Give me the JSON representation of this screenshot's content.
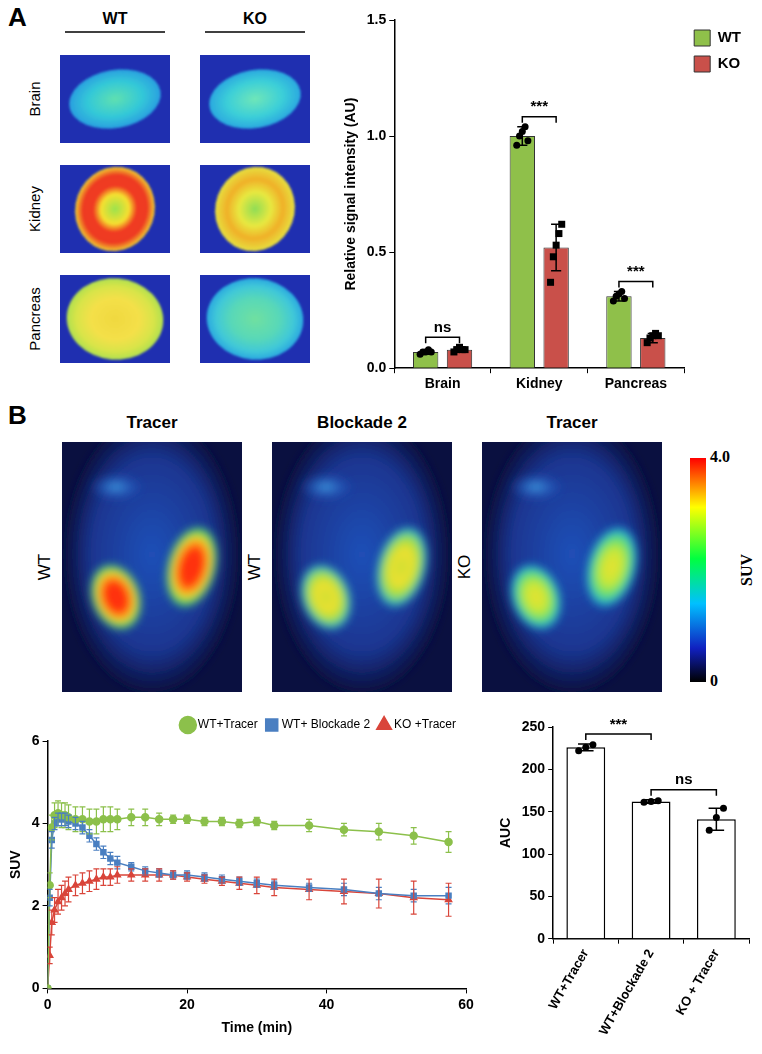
{
  "panel_labels": [
    "A",
    "B"
  ],
  "images_A": {
    "columns": [
      "WT",
      "KO"
    ],
    "rows": [
      "Brain",
      "Kidney",
      "Pancreas"
    ]
  },
  "images_B": {
    "titles": [
      "Tracer",
      "Blockade 2",
      "Tracer"
    ],
    "row_labels": [
      "WT",
      "WT",
      "KO"
    ],
    "colorbar": {
      "label": "SUV",
      "range": [
        0,
        4
      ],
      "ticks": [
        {
          "value": 4,
          "label": "4.0"
        },
        0
      ]
    }
  },
  "chart_data": [
    {
      "type": "bar",
      "categories": [
        "Brain",
        "Kidney",
        "Pancreas"
      ],
      "series": [
        {
          "name": "WT",
          "color": "#8fc04a",
          "marker": "circle",
          "values": [
            0.07,
            1.0,
            0.31
          ],
          "errors": [
            0.01,
            0.04,
            0.02
          ],
          "points": [
            [
              0.06,
              0.07,
              0.07,
              0.08,
              0.07
            ],
            [
              0.96,
              1.0,
              1.02,
              1.04,
              0.98
            ],
            [
              0.29,
              0.31,
              0.32,
              0.33,
              0.3
            ]
          ]
        },
        {
          "name": "KO",
          "color": "#c9504a",
          "marker": "square",
          "values": [
            0.08,
            0.52,
            0.13
          ],
          "errors": [
            0.01,
            0.1,
            0.02
          ],
          "points": [
            [
              0.07,
              0.08,
              0.09,
              0.08,
              0.08
            ],
            [
              0.37,
              0.48,
              0.53,
              0.58,
              0.62
            ],
            [
              0.11,
              0.13,
              0.14,
              0.15,
              0.14
            ]
          ]
        }
      ],
      "significance": [
        "ns",
        "***",
        "***"
      ],
      "y_label": "Relative signal intensity (AU)",
      "ylim": [
        0,
        1.5
      ],
      "yticks": [
        {
          "value": 0,
          "label": "0.0"
        },
        {
          "value": 0.5,
          "label": "0.5"
        },
        {
          "value": 1,
          "label": "1.0"
        },
        {
          "value": 1.5,
          "label": "1.5"
        }
      ],
      "grid": false,
      "legend": "right"
    },
    {
      "type": "line",
      "x": [
        0,
        0.3,
        0.6,
        1,
        1.5,
        2,
        2.5,
        3,
        4,
        5,
        6,
        7,
        8,
        9,
        10,
        12,
        14,
        16,
        18,
        20,
        22.5,
        25,
        27.5,
        30,
        32.5,
        37.5,
        42.5,
        47.5,
        52.5,
        57.5
      ],
      "series": [
        {
          "name": "WT+Tracer",
          "color": "#8cc04b",
          "marker": "circle",
          "values": [
            0,
            2.5,
            3.9,
            4.2,
            4.25,
            4.2,
            4.2,
            4.15,
            4.1,
            4.1,
            4.05,
            4.05,
            4.1,
            4.1,
            4.1,
            4.15,
            4.15,
            4.1,
            4.1,
            4.1,
            4.05,
            4.05,
            4.0,
            4.05,
            3.95,
            3.95,
            3.85,
            3.8,
            3.7,
            3.55
          ],
          "errors": [
            0,
            0.3,
            0.3,
            0.3,
            0.3,
            0.3,
            0.3,
            0.3,
            0.3,
            0.3,
            0.3,
            0.3,
            0.3,
            0.3,
            0.25,
            0.2,
            0.2,
            0.15,
            0.1,
            0.1,
            0.1,
            0.1,
            0.1,
            0.1,
            0.1,
            0.15,
            0.15,
            0.2,
            0.2,
            0.25
          ]
        },
        {
          "name": "WT+ Blockade 2",
          "color": "#4a7fc1",
          "marker": "square",
          "values": [
            0,
            2.2,
            3.6,
            4.0,
            4.1,
            4.1,
            4.1,
            4.05,
            4.0,
            3.9,
            3.7,
            3.5,
            3.3,
            3.15,
            3.05,
            2.95,
            2.85,
            2.8,
            2.75,
            2.75,
            2.7,
            2.65,
            2.6,
            2.55,
            2.5,
            2.45,
            2.4,
            2.3,
            2.25,
            2.25
          ],
          "errors": [
            0,
            0.2,
            0.2,
            0.15,
            0.15,
            0.15,
            0.15,
            0.15,
            0.15,
            0.15,
            0.15,
            0.15,
            0.15,
            0.15,
            0.15,
            0.1,
            0.1,
            0.1,
            0.1,
            0.1,
            0.1,
            0.1,
            0.1,
            0.1,
            0.1,
            0.1,
            0.15,
            0.15,
            0.15,
            0.2
          ]
        },
        {
          "name": "KO +Tracer",
          "color": "#d9453a",
          "marker": "triangle",
          "values": [
            0,
            0.8,
            1.6,
            1.9,
            2.1,
            2.2,
            2.3,
            2.4,
            2.5,
            2.55,
            2.6,
            2.65,
            2.7,
            2.7,
            2.75,
            2.75,
            2.75,
            2.75,
            2.75,
            2.7,
            2.65,
            2.6,
            2.55,
            2.5,
            2.45,
            2.4,
            2.35,
            2.3,
            2.2,
            2.15
          ],
          "errors": [
            0,
            0.2,
            0.3,
            0.3,
            0.3,
            0.3,
            0.3,
            0.3,
            0.25,
            0.25,
            0.25,
            0.25,
            0.2,
            0.2,
            0.2,
            0.15,
            0.15,
            0.15,
            0.1,
            0.1,
            0.1,
            0.1,
            0.15,
            0.2,
            0.2,
            0.25,
            0.3,
            0.35,
            0.4,
            0.4
          ]
        }
      ],
      "x_label": "Time (min)",
      "y_label": "SUV",
      "xlim": [
        0,
        60
      ],
      "xticks": [
        0,
        20,
        40,
        60
      ],
      "ylim": [
        0,
        6
      ],
      "yticks": [
        0,
        2,
        4,
        6
      ],
      "grid": false,
      "legend": "top"
    },
    {
      "type": "bar",
      "categories": [
        "WT+Tracer",
        "WT+Blockade 2",
        "KO + Tracer"
      ],
      "values": [
        226,
        162,
        141
      ],
      "errors": [
        4,
        2,
        13
      ],
      "points": [
        [
          222,
          226,
          229
        ],
        [
          161,
          162,
          163
        ],
        [
          128,
          143,
          154
        ]
      ],
      "color": "#ffffff",
      "marker": "circle",
      "comparisons": [
        {
          "between": [
            "WT+Tracer",
            "WT+Blockade 2"
          ],
          "label": "***"
        },
        {
          "between": [
            "WT+Blockade 2",
            "KO + Tracer"
          ],
          "label": "ns"
        }
      ],
      "y_label": "AUC",
      "ylim": [
        0,
        250
      ],
      "yticks": [
        0,
        50,
        100,
        150,
        200,
        250
      ],
      "grid": false
    }
  ]
}
